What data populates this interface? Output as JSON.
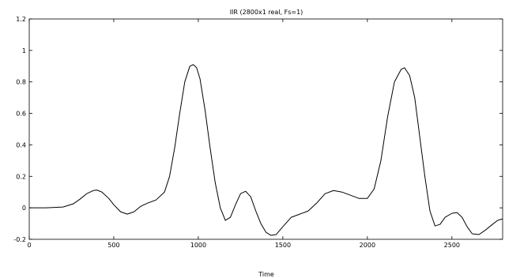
{
  "chart_data": {
    "type": "line",
    "title": "IIR (2800x1 real, Fs=1)",
    "xlabel": "Time",
    "ylabel": "",
    "xlim": [
      0,
      2800
    ],
    "ylim": [
      -0.2,
      1.2
    ],
    "xticks": [
      0,
      500,
      1000,
      1500,
      2000,
      2500
    ],
    "xtick_labels": [
      "0",
      "500",
      "1000",
      "1500",
      "2000",
      "2500"
    ],
    "yticks": [
      -0.2,
      0,
      0.2,
      0.4,
      0.6,
      0.8,
      1,
      1.2
    ],
    "ytick_labels": [
      "-0.2",
      "0",
      "0.2",
      "0.4",
      "0.6",
      "0.8",
      "1",
      "1.2"
    ],
    "grid": false,
    "legend": false,
    "line_color": "#000000",
    "series": [
      {
        "x": [
          0,
          100,
          200,
          260,
          300,
          340,
          380,
          400,
          430,
          470,
          500,
          540,
          580,
          620,
          660,
          700,
          750,
          800,
          830,
          860,
          890,
          920,
          950,
          970,
          990,
          1010,
          1040,
          1070,
          1100,
          1130,
          1160,
          1190,
          1220,
          1250,
          1280,
          1310,
          1340,
          1370,
          1400,
          1430,
          1460,
          1500,
          1550,
          1600,
          1650,
          1700,
          1750,
          1800,
          1850,
          1900,
          1950,
          2000,
          2040,
          2080,
          2120,
          2160,
          2200,
          2220,
          2250,
          2280,
          2310,
          2340,
          2370,
          2400,
          2430,
          2460,
          2500,
          2530,
          2560,
          2590,
          2620,
          2660,
          2700,
          2740,
          2770,
          2800
        ],
        "y": [
          0.0,
          0.0,
          0.005,
          0.025,
          0.055,
          0.09,
          0.11,
          0.113,
          0.1,
          0.06,
          0.02,
          -0.025,
          -0.04,
          -0.025,
          0.01,
          0.03,
          0.05,
          0.1,
          0.2,
          0.38,
          0.6,
          0.8,
          0.9,
          0.91,
          0.89,
          0.82,
          0.62,
          0.38,
          0.16,
          0.0,
          -0.08,
          -0.06,
          0.02,
          0.09,
          0.105,
          0.07,
          -0.02,
          -0.1,
          -0.155,
          -0.175,
          -0.17,
          -0.12,
          -0.06,
          -0.04,
          -0.02,
          0.03,
          0.09,
          0.11,
          0.1,
          0.08,
          0.06,
          0.06,
          0.12,
          0.3,
          0.58,
          0.8,
          0.88,
          0.89,
          0.84,
          0.7,
          0.45,
          0.2,
          -0.02,
          -0.115,
          -0.105,
          -0.06,
          -0.035,
          -0.03,
          -0.06,
          -0.12,
          -0.165,
          -0.17,
          -0.14,
          -0.105,
          -0.08,
          -0.07
        ]
      }
    ]
  }
}
